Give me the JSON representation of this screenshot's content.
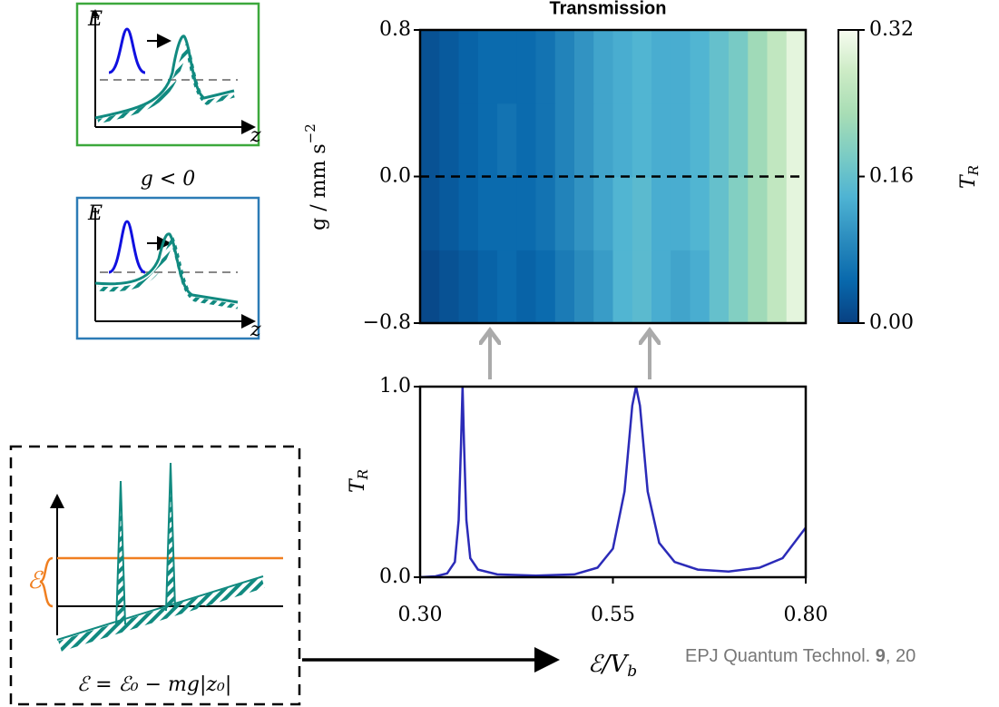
{
  "chart_data": [
    {
      "type": "heatmap",
      "title": "Transmission",
      "ylabel": {
        "main": "g / mm s",
        "sup": "−2"
      },
      "xlim": [
        0.3,
        0.8
      ],
      "ylim": [
        -0.8,
        0.8
      ],
      "yticks": [
        {
          "value": 0.8,
          "label": "0.8"
        },
        {
          "value": 0.0,
          "label": "0.0"
        },
        {
          "value": -0.8,
          "label": "−0.8"
        }
      ],
      "hline": 0.0,
      "xbins": [
        0.3,
        0.325,
        0.35,
        0.375,
        0.4,
        0.425,
        0.45,
        0.475,
        0.5,
        0.525,
        0.55,
        0.575,
        0.6,
        0.625,
        0.65,
        0.675,
        0.7,
        0.725,
        0.75,
        0.775,
        0.8
      ],
      "ybins": [
        -0.8,
        -0.4,
        0.0,
        0.4,
        0.8
      ],
      "values": [
        [
          0.01,
          0.02,
          0.03,
          0.04,
          0.05,
          0.04,
          0.05,
          0.07,
          0.09,
          0.11,
          0.14,
          0.15,
          0.13,
          0.12,
          0.13,
          0.16,
          0.19,
          0.22,
          0.26,
          0.3
        ],
        [
          0.02,
          0.03,
          0.04,
          0.05,
          0.05,
          0.05,
          0.06,
          0.08,
          0.1,
          0.12,
          0.14,
          0.15,
          0.13,
          0.13,
          0.14,
          0.16,
          0.19,
          0.22,
          0.26,
          0.3
        ],
        [
          0.02,
          0.03,
          0.04,
          0.05,
          0.06,
          0.05,
          0.06,
          0.08,
          0.1,
          0.12,
          0.13,
          0.14,
          0.13,
          0.13,
          0.14,
          0.16,
          0.18,
          0.22,
          0.26,
          0.3
        ],
        [
          0.02,
          0.03,
          0.04,
          0.05,
          0.05,
          0.05,
          0.06,
          0.08,
          0.1,
          0.12,
          0.13,
          0.14,
          0.13,
          0.13,
          0.14,
          0.16,
          0.18,
          0.22,
          0.26,
          0.3
        ]
      ],
      "colormap": [
        "#084081",
        "#0868ac",
        "#2b8cbe",
        "#4eb3d3",
        "#7bccc4",
        "#a8ddb5",
        "#ccebc5",
        "#f7fcf0"
      ],
      "colorbar_lim": [
        0,
        0.32
      ],
      "colorbar_ticks": [
        {
          "value": 0,
          "label": "0.00"
        },
        {
          "value": 0.16,
          "label": "0.16"
        },
        {
          "value": 0.32,
          "label": "0.32"
        }
      ],
      "colorbar_label": {
        "main": "T",
        "sub": "R"
      }
    },
    {
      "type": "line",
      "color": "#2b2bb8",
      "xlabel": {
        "main": "ℰ/V",
        "sub": "b"
      },
      "ylabel": {
        "main": "T",
        "sub": "R"
      },
      "xlim": [
        0.3,
        0.8
      ],
      "ylim": [
        0,
        1
      ],
      "xticks": [
        {
          "value": 0.3,
          "label": "0.30"
        },
        {
          "value": 0.55,
          "label": "0.55"
        },
        {
          "value": 0.8,
          "label": "0.80"
        }
      ],
      "yticks": [
        {
          "value": 0,
          "label": "0.0"
        },
        {
          "value": 1,
          "label": "1.0"
        }
      ],
      "x": [
        0.3,
        0.32,
        0.335,
        0.345,
        0.35,
        0.353,
        0.355,
        0.357,
        0.36,
        0.365,
        0.375,
        0.4,
        0.45,
        0.5,
        0.53,
        0.55,
        0.565,
        0.575,
        0.58,
        0.585,
        0.595,
        0.61,
        0.63,
        0.66,
        0.7,
        0.74,
        0.77,
        0.8
      ],
      "values": [
        0.0,
        0.005,
        0.02,
        0.08,
        0.3,
        0.7,
        1.0,
        0.7,
        0.3,
        0.1,
        0.04,
        0.015,
        0.008,
        0.015,
        0.05,
        0.15,
        0.45,
        0.9,
        1.0,
        0.9,
        0.45,
        0.18,
        0.08,
        0.04,
        0.03,
        0.05,
        0.1,
        0.26
      ]
    }
  ],
  "schematics": [
    {
      "axis_y": "E",
      "axis_x": "z"
    },
    {
      "caption": "g < 0",
      "axis_y": "E",
      "axis_x": "z"
    }
  ],
  "inset": {
    "energy_label": "ℰ",
    "formula": "ℰ = ℰ₀ − mg|z₀|"
  },
  "citation": {
    "journal": "EPJ Quantum Technol. ",
    "volume": "9",
    "page": ", 20"
  }
}
